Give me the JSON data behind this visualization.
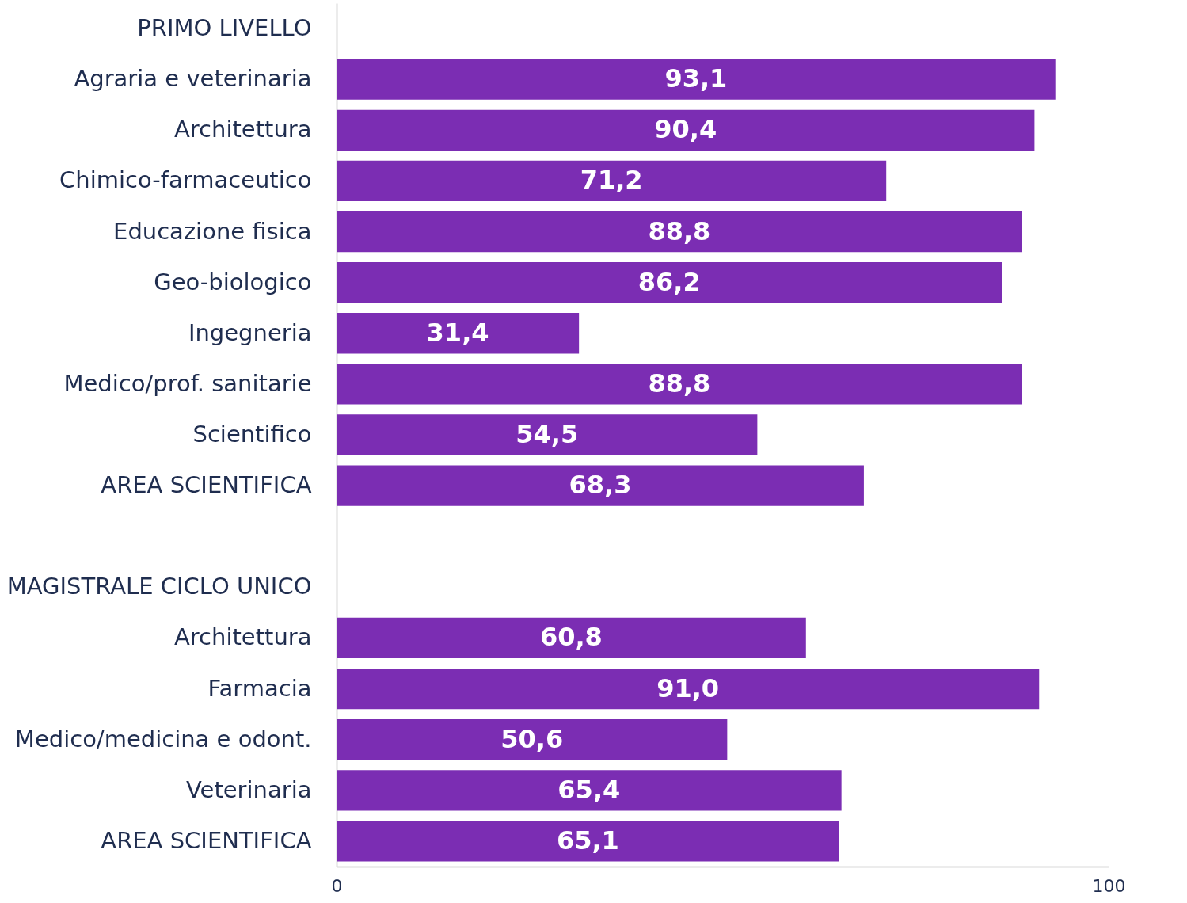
{
  "chart_data": {
    "type": "bar",
    "orientation": "horizontal",
    "categories": [
      "PRIMO LIVELLO",
      "Agraria e veterinaria",
      "Architettura",
      "Chimico-farmaceutico",
      "Educazione fisica",
      "Geo-biologico",
      "Ingegneria",
      "Medico/prof. sanitarie",
      "Scientifico",
      "AREA SCIENTIFICA",
      null,
      "MAGISTRALE CICLO UNICO",
      "Architettura",
      "Farmacia",
      "Medico/medicina e odont.",
      "Veterinaria",
      "AREA SCIENTIFICA"
    ],
    "values": [
      null,
      93.1,
      90.4,
      71.2,
      88.8,
      86.2,
      31.4,
      88.8,
      54.5,
      68.3,
      null,
      null,
      60.8,
      91.0,
      50.6,
      65.4,
      65.1
    ],
    "value_labels": [
      null,
      "93,1",
      "90,4",
      "71,2",
      "88,8",
      "86,2",
      "31,4",
      "88,8",
      "54,5",
      "68,3",
      null,
      null,
      "60,8",
      "91,0",
      "50,6",
      "65,4",
      "65,1"
    ],
    "color": "#7b2db3",
    "xlim": [
      0,
      100
    ],
    "xticks": [
      0,
      100
    ],
    "grid": false
  }
}
